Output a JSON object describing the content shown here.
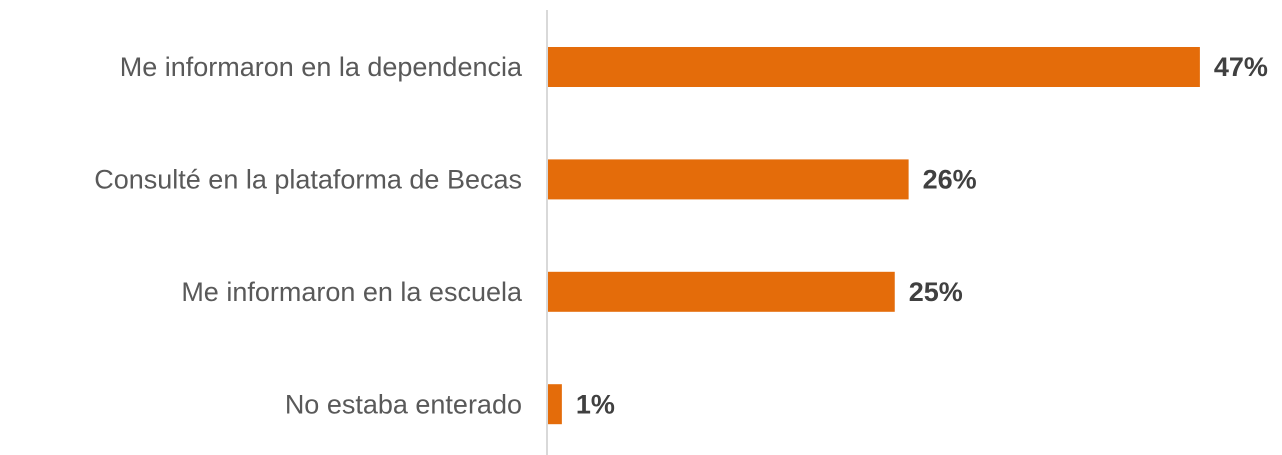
{
  "chart_data": {
    "type": "bar",
    "orientation": "horizontal",
    "categories": [
      "Me informaron en la dependencia",
      "Consulté en la plataforma de Becas",
      "Me informaron en la escuela",
      "No estaba enterado"
    ],
    "values": [
      47,
      26,
      25,
      1
    ],
    "value_labels": [
      "47%",
      "26%",
      "25%",
      "1%"
    ],
    "color": "#e46c0a"
  }
}
